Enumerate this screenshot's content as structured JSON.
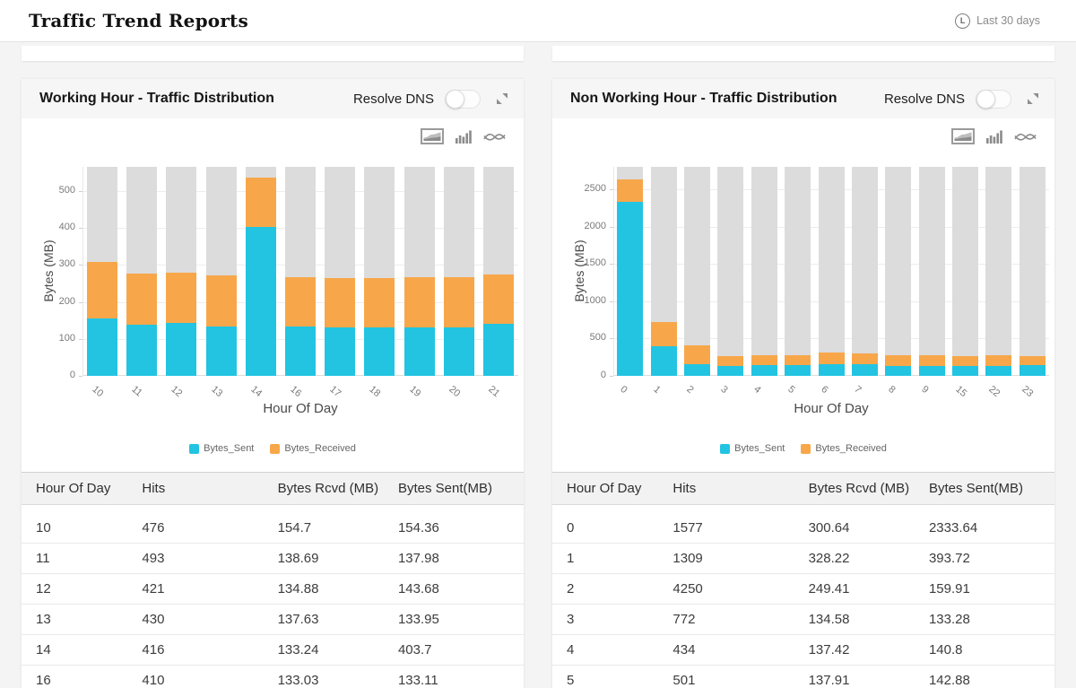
{
  "page": {
    "title": "Traffic Trend Reports",
    "time_range": "Last 30 days",
    "time_range_icon_letter": "L"
  },
  "colors": {
    "sent": "#22c4e2",
    "received": "#f7a74a",
    "bar_track": "#dcdcdd"
  },
  "panels": [
    {
      "title": "Working Hour - Traffic Distribution",
      "resolve_dns_label": "Resolve DNS",
      "resolve_dns_state": "off",
      "chart_tools": [
        "area-chart-icon",
        "bar-chart-icon",
        "spline-chart-icon"
      ],
      "chart_data": {
        "type": "bar",
        "stacked": true,
        "background_bars": true,
        "categories": [
          "10",
          "11",
          "12",
          "13",
          "14",
          "16",
          "17",
          "18",
          "19",
          "20",
          "21"
        ],
        "series": [
          {
            "name": "Bytes_Sent",
            "color": "#22c4e2",
            "values": [
              154.36,
              137.98,
              143.68,
              133.95,
              403.7,
              133.11,
              132,
              130,
              131,
              132,
              140
            ]
          },
          {
            "name": "Bytes_Received",
            "color": "#f7a74a",
            "values": [
              154.7,
              138.69,
              134.88,
              137.63,
              133.24,
              133.03,
              133,
              135,
              136,
              135,
              135
            ]
          }
        ],
        "title": "",
        "xlabel": "Hour Of Day",
        "ylabel": "Bytes (MB)",
        "ylim": [
          0,
          565
        ],
        "yticks": [
          0,
          100,
          200,
          300,
          400,
          500
        ],
        "legend_position": "bottom",
        "grid": true
      },
      "table": {
        "columns": [
          "Hour Of Day",
          "Hits",
          "Bytes Rcvd (MB)",
          "Bytes Sent(MB)"
        ],
        "rows": [
          [
            "10",
            "476",
            "154.7",
            "154.36"
          ],
          [
            "11",
            "493",
            "138.69",
            "137.98"
          ],
          [
            "12",
            "421",
            "134.88",
            "143.68"
          ],
          [
            "13",
            "430",
            "137.63",
            "133.95"
          ],
          [
            "14",
            "416",
            "133.24",
            "403.7"
          ],
          [
            "16",
            "410",
            "133.03",
            "133.11"
          ]
        ]
      }
    },
    {
      "title": "Non Working Hour - Traffic Distribution",
      "resolve_dns_label": "Resolve DNS",
      "resolve_dns_state": "off",
      "chart_tools": [
        "area-chart-icon",
        "bar-chart-icon",
        "spline-chart-icon"
      ],
      "chart_data": {
        "type": "bar",
        "stacked": true,
        "background_bars": true,
        "categories": [
          "0",
          "1",
          "2",
          "3",
          "4",
          "5",
          "6",
          "7",
          "8",
          "9",
          "15",
          "22",
          "23"
        ],
        "series": [
          {
            "name": "Bytes_Sent",
            "color": "#22c4e2",
            "values": [
              2333.64,
              393.72,
              159.91,
              133.28,
              140.8,
              142.88,
              160,
              152,
              135,
              134,
              130,
              134,
              140
            ]
          },
          {
            "name": "Bytes_Received",
            "color": "#f7a74a",
            "values": [
              300.64,
              328.22,
              249.41,
              134.58,
              137.42,
              137.91,
              150,
              148,
              140,
              141,
              135,
              141,
              130
            ]
          }
        ],
        "title": "",
        "xlabel": "Hour Of Day",
        "ylabel": "Bytes (MB)",
        "ylim": [
          0,
          2800
        ],
        "yticks": [
          0,
          500,
          1000,
          1500,
          2000,
          2500
        ],
        "legend_position": "bottom",
        "grid": true
      },
      "table": {
        "columns": [
          "Hour Of Day",
          "Hits",
          "Bytes Rcvd (MB)",
          "Bytes Sent(MB)"
        ],
        "rows": [
          [
            "0",
            "1577",
            "300.64",
            "2333.64"
          ],
          [
            "1",
            "1309",
            "328.22",
            "393.72"
          ],
          [
            "2",
            "4250",
            "249.41",
            "159.91"
          ],
          [
            "3",
            "772",
            "134.58",
            "133.28"
          ],
          [
            "4",
            "434",
            "137.42",
            "140.8"
          ],
          [
            "5",
            "501",
            "137.91",
            "142.88"
          ]
        ]
      }
    }
  ]
}
